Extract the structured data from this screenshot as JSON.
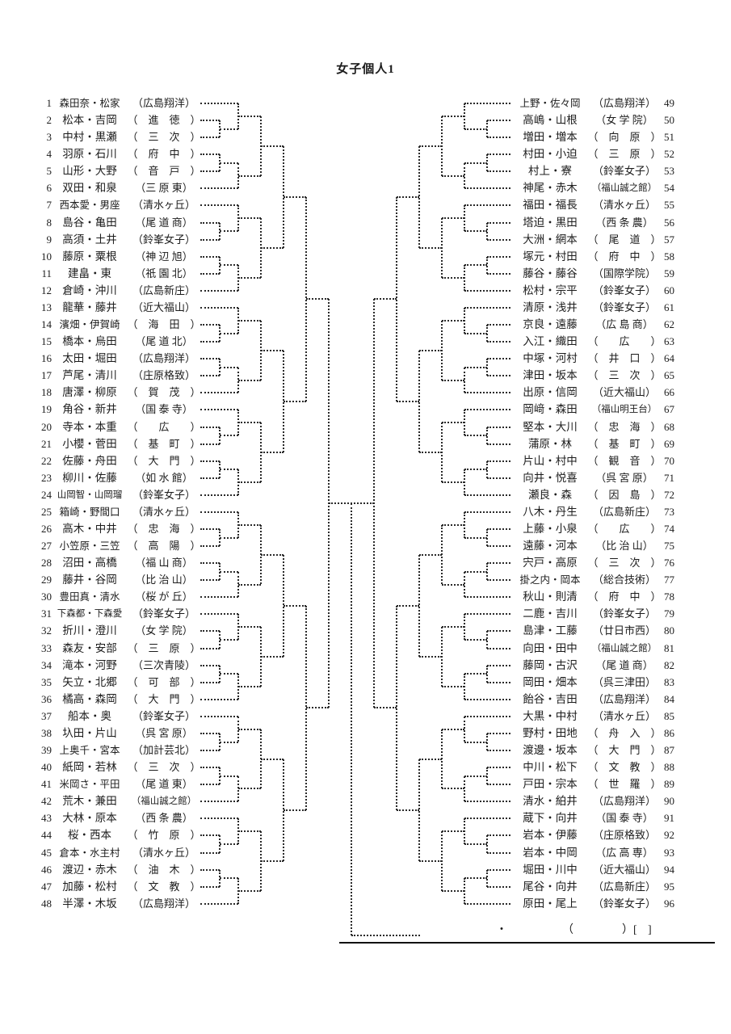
{
  "title": "女子個人1",
  "winner_line": {
    "dot": "・",
    "open_paren": "（",
    "close_paren_bracket": "）[",
    "close_bracket": "]"
  },
  "entries_left": [
    {
      "no": 1,
      "names": "森田奈・松家",
      "school": "広島翔洋"
    },
    {
      "no": 2,
      "names": "松本・吉岡",
      "school": "進徳"
    },
    {
      "no": 3,
      "names": "中村・黒瀬",
      "school": "三次"
    },
    {
      "no": 4,
      "names": "羽原・石川",
      "school": "府中"
    },
    {
      "no": 5,
      "names": "山形・大野",
      "school": "音戸"
    },
    {
      "no": 6,
      "names": "双田・和泉",
      "school": "三原東"
    },
    {
      "no": 7,
      "names": "西本愛・男座",
      "school": "清水ヶ丘"
    },
    {
      "no": 8,
      "names": "島谷・亀田",
      "school": "尾道商"
    },
    {
      "no": 9,
      "names": "高須・土井",
      "school": "鈴峯女子"
    },
    {
      "no": 10,
      "names": "藤原・粟根",
      "school": "神辺旭"
    },
    {
      "no": 11,
      "names": "建畠・東",
      "school": "祇園北"
    },
    {
      "no": 12,
      "names": "倉崎・沖川",
      "school": "広島新庄"
    },
    {
      "no": 13,
      "names": "龍華・藤井",
      "school": "近大福山"
    },
    {
      "no": 14,
      "names": "濱畑・伊賀崎",
      "school": "海田"
    },
    {
      "no": 15,
      "names": "橋本・烏田",
      "school": "尾道北"
    },
    {
      "no": 16,
      "names": "太田・堀田",
      "school": "広島翔洋"
    },
    {
      "no": 17,
      "names": "芦尾・清川",
      "school": "庄原格致"
    },
    {
      "no": 18,
      "names": "唐澤・柳原",
      "school": "賀茂"
    },
    {
      "no": 19,
      "names": "角谷・新井",
      "school": "国泰寺"
    },
    {
      "no": 20,
      "names": "寺本・本重",
      "school": "広"
    },
    {
      "no": 21,
      "names": "小櫻・菅田",
      "school": "基町"
    },
    {
      "no": 22,
      "names": "佐藤・舟田",
      "school": "大門"
    },
    {
      "no": 23,
      "names": "柳川・佐藤",
      "school": "如水館"
    },
    {
      "no": 24,
      "names": "山岡智・山岡瑠",
      "school": "鈴峯女子"
    },
    {
      "no": 25,
      "names": "箱崎・野間口",
      "school": "清水ヶ丘"
    },
    {
      "no": 26,
      "names": "高木・中井",
      "school": "忠海"
    },
    {
      "no": 27,
      "names": "小笠原・三笠",
      "school": "高陽"
    },
    {
      "no": 28,
      "names": "沼田・高橋",
      "school": "福山商"
    },
    {
      "no": 29,
      "names": "藤井・谷岡",
      "school": "比治山"
    },
    {
      "no": 30,
      "names": "豊田真・清水",
      "school": "桜が丘"
    },
    {
      "no": 31,
      "names": "下森都・下森愛",
      "school": "鈴峯女子"
    },
    {
      "no": 32,
      "names": "折川・澄川",
      "school": "女学院"
    },
    {
      "no": 33,
      "names": "森友・安部",
      "school": "三原"
    },
    {
      "no": 34,
      "names": "滝本・河野",
      "school": "三次青陵"
    },
    {
      "no": 35,
      "names": "矢立・北郷",
      "school": "可部"
    },
    {
      "no": 36,
      "names": "橘高・森岡",
      "school": "大門"
    },
    {
      "no": 37,
      "names": "船本・奥",
      "school": "鈴峯女子"
    },
    {
      "no": 38,
      "names": "圦田・片山",
      "school": "呉宮原"
    },
    {
      "no": 39,
      "names": "上奥千・宮本",
      "school": "加計芸北"
    },
    {
      "no": 40,
      "names": "紙岡・若林",
      "school": "三次"
    },
    {
      "no": 41,
      "names": "米岡さ・平田",
      "school": "尾道東"
    },
    {
      "no": 42,
      "names": "荒木・兼田",
      "school": "福山誠之館"
    },
    {
      "no": 43,
      "names": "大林・原本",
      "school": "西条農"
    },
    {
      "no": 44,
      "names": "桜・西本",
      "school": "竹原"
    },
    {
      "no": 45,
      "names": "倉本・水主村",
      "school": "清水ヶ丘"
    },
    {
      "no": 46,
      "names": "渡辺・赤木",
      "school": "油木"
    },
    {
      "no": 47,
      "names": "加藤・松村",
      "school": "文教"
    },
    {
      "no": 48,
      "names": "半澤・木坂",
      "school": "広島翔洋"
    }
  ],
  "entries_right": [
    {
      "no": 49,
      "names": "上野・佐々岡",
      "school": "広島翔洋"
    },
    {
      "no": 50,
      "names": "高嶋・山根",
      "school": "女学院"
    },
    {
      "no": 51,
      "names": "増田・増本",
      "school": "向原"
    },
    {
      "no": 52,
      "names": "村田・小迫",
      "school": "三原"
    },
    {
      "no": 53,
      "names": "村上・寮",
      "school": "鈴峯女子"
    },
    {
      "no": 54,
      "names": "神尾・赤木",
      "school": "福山誠之館"
    },
    {
      "no": 55,
      "names": "福田・福長",
      "school": "清水ヶ丘"
    },
    {
      "no": 56,
      "names": "塔迫・黒田",
      "school": "西条農"
    },
    {
      "no": 57,
      "names": "大洲・網本",
      "school": "尾道"
    },
    {
      "no": 58,
      "names": "塚元・村田",
      "school": "府中"
    },
    {
      "no": 59,
      "names": "藤谷・藤谷",
      "school": "国際学院"
    },
    {
      "no": 60,
      "names": "松村・宗平",
      "school": "鈴峯女子"
    },
    {
      "no": 61,
      "names": "清原・浅井",
      "school": "鈴峯女子"
    },
    {
      "no": 62,
      "names": "京良・遠藤",
      "school": "広島商"
    },
    {
      "no": 63,
      "names": "入江・織田",
      "school": "広"
    },
    {
      "no": 64,
      "names": "中塚・河村",
      "school": "井口"
    },
    {
      "no": 65,
      "names": "津田・坂本",
      "school": "三次"
    },
    {
      "no": 66,
      "names": "出原・信岡",
      "school": "近大福山"
    },
    {
      "no": 67,
      "names": "岡﨑・森田",
      "school": "福山明王台"
    },
    {
      "no": 68,
      "names": "堅本・大川",
      "school": "忠海"
    },
    {
      "no": 69,
      "names": "蒲原・林",
      "school": "基町"
    },
    {
      "no": 70,
      "names": "片山・村中",
      "school": "観音"
    },
    {
      "no": 71,
      "names": "向井・悦喜",
      "school": "呉宮原"
    },
    {
      "no": 72,
      "names": "瀬良・森",
      "school": "因島"
    },
    {
      "no": 73,
      "names": "八木・丹生",
      "school": "広島新庄"
    },
    {
      "no": 74,
      "names": "上藤・小泉",
      "school": "広"
    },
    {
      "no": 75,
      "names": "遠藤・河本",
      "school": "比治山"
    },
    {
      "no": 76,
      "names": "宍戸・高原",
      "school": "三次"
    },
    {
      "no": 77,
      "names": "掛之内・岡本",
      "school": "総合技術"
    },
    {
      "no": 78,
      "names": "秋山・則清",
      "school": "府中"
    },
    {
      "no": 79,
      "names": "二鹿・吉川",
      "school": "鈴峯女子"
    },
    {
      "no": 80,
      "names": "島津・工藤",
      "school": "廿日市西"
    },
    {
      "no": 81,
      "names": "向田・田中",
      "school": "福山誠之館"
    },
    {
      "no": 82,
      "names": "藤岡・古沢",
      "school": "尾道商"
    },
    {
      "no": 83,
      "names": "岡田・畑本",
      "school": "呉三津田"
    },
    {
      "no": 84,
      "names": "飴谷・吉田",
      "school": "広島翔洋"
    },
    {
      "no": 85,
      "names": "大黒・中村",
      "school": "清水ヶ丘"
    },
    {
      "no": 86,
      "names": "野村・田地",
      "school": "舟入"
    },
    {
      "no": 87,
      "names": "渡邊・坂本",
      "school": "大門"
    },
    {
      "no": 88,
      "names": "中川・松下",
      "school": "文教"
    },
    {
      "no": 89,
      "names": "戸田・宗本",
      "school": "世羅"
    },
    {
      "no": 90,
      "names": "清水・絈井",
      "school": "広島翔洋"
    },
    {
      "no": 91,
      "names": "蔵下・向井",
      "school": "国泰寺"
    },
    {
      "no": 92,
      "names": "岩本・伊藤",
      "school": "庄原格致"
    },
    {
      "no": 93,
      "names": "岩本・中岡",
      "school": "広高専"
    },
    {
      "no": 94,
      "names": "堀田・川中",
      "school": "近大福山"
    },
    {
      "no": 95,
      "names": "尾谷・向井",
      "school": "広島新庄"
    },
    {
      "no": 96,
      "names": "原田・尾上",
      "school": "鈴峯女子"
    }
  ]
}
